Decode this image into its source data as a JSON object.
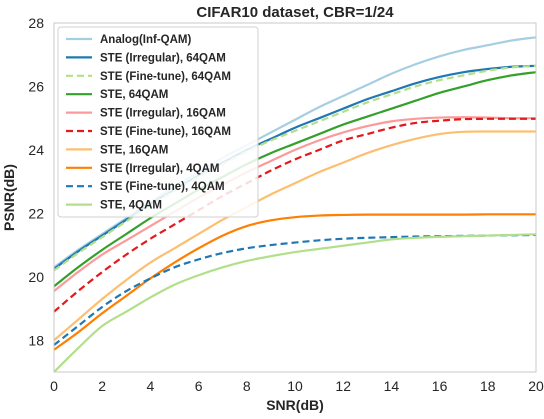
{
  "chart_data": {
    "type": "line",
    "title": "CIFAR10 dataset, CBR=1/24",
    "xlabel": "SNR(dB)",
    "ylabel": "PSNR(dB)",
    "xlim": [
      0,
      20
    ],
    "ylim": [
      17,
      28
    ],
    "xticks": [
      0,
      2,
      4,
      6,
      8,
      10,
      12,
      14,
      16,
      18,
      20
    ],
    "yticks": [
      18,
      20,
      22,
      24,
      26,
      28
    ],
    "grid": false,
    "legend_position": "top-left",
    "x": [
      0,
      1,
      2,
      3,
      4,
      5,
      6,
      7,
      8,
      9,
      10,
      11,
      12,
      13,
      14,
      15,
      16,
      17,
      18,
      19,
      20
    ],
    "series": [
      {
        "name": "Analog(Inf-QAM)",
        "color": "#a6cee3",
        "dash": "solid",
        "values": [
          20.3,
          20.85,
          21.35,
          21.85,
          22.35,
          22.85,
          23.3,
          23.75,
          24.15,
          24.55,
          24.95,
          25.35,
          25.7,
          26.05,
          26.4,
          26.7,
          26.95,
          27.15,
          27.3,
          27.45,
          27.55
        ]
      },
      {
        "name": "STE (Irregular), 64QAM",
        "color": "#1f78b4",
        "dash": "solid",
        "values": [
          20.25,
          20.8,
          21.3,
          21.8,
          22.3,
          22.75,
          23.2,
          23.6,
          24.0,
          24.35,
          24.7,
          25.0,
          25.3,
          25.6,
          25.85,
          26.1,
          26.3,
          26.45,
          26.55,
          26.62,
          26.65
        ]
      },
      {
        "name": "STE (Fine-tune), 64QAM",
        "color": "#b2df8a",
        "dash": "dashed",
        "values": [
          20.2,
          20.75,
          21.25,
          21.75,
          22.25,
          22.7,
          23.15,
          23.55,
          23.95,
          24.3,
          24.6,
          24.9,
          25.2,
          25.5,
          25.75,
          26.0,
          26.2,
          26.35,
          26.5,
          26.6,
          26.65
        ]
      },
      {
        "name": "STE, 64QAM",
        "color": "#33a02c",
        "dash": "solid",
        "values": [
          19.7,
          20.3,
          20.85,
          21.35,
          21.85,
          22.3,
          22.75,
          23.15,
          23.55,
          23.9,
          24.2,
          24.5,
          24.8,
          25.05,
          25.3,
          25.55,
          25.8,
          26.0,
          26.2,
          26.35,
          26.45
        ]
      },
      {
        "name": "STE (Irregular), 16QAM",
        "color": "#fb9a99",
        "dash": "solid",
        "values": [
          19.55,
          20.15,
          20.7,
          21.15,
          21.6,
          22.05,
          22.5,
          22.9,
          23.3,
          23.65,
          24.0,
          24.3,
          24.55,
          24.75,
          24.9,
          24.98,
          25.02,
          25.03,
          25.02,
          25.0,
          25.0
        ]
      },
      {
        "name": "STE (Fine-tune), 16QAM",
        "color": "#e31a1c",
        "dash": "dashed",
        "values": [
          18.9,
          19.55,
          20.15,
          20.7,
          21.2,
          21.65,
          22.1,
          22.55,
          22.95,
          23.35,
          23.7,
          24.0,
          24.3,
          24.5,
          24.7,
          24.85,
          24.92,
          24.97,
          24.98,
          24.98,
          24.98
        ]
      },
      {
        "name": "STE, 16QAM",
        "color": "#fdbf6f",
        "dash": "solid",
        "values": [
          18.0,
          18.65,
          19.3,
          19.9,
          20.45,
          20.9,
          21.35,
          21.8,
          22.2,
          22.6,
          22.95,
          23.3,
          23.6,
          23.9,
          24.15,
          24.35,
          24.5,
          24.57,
          24.58,
          24.58,
          24.58
        ]
      },
      {
        "name": "STE (Irregular), 4QAM",
        "color": "#ff7f00",
        "dash": "solid",
        "values": [
          17.7,
          18.25,
          18.85,
          19.4,
          19.95,
          20.45,
          20.9,
          21.3,
          21.6,
          21.78,
          21.88,
          21.93,
          21.95,
          21.96,
          21.96,
          21.96,
          21.96,
          21.96,
          21.97,
          21.97,
          21.97
        ]
      },
      {
        "name": "STE (Fine-tune), 4QAM",
        "color": "#1f78b4",
        "dash": "dashed",
        "values": [
          17.85,
          18.45,
          19.05,
          19.55,
          19.95,
          20.3,
          20.55,
          20.75,
          20.9,
          21.0,
          21.08,
          21.15,
          21.2,
          21.23,
          21.25,
          21.27,
          21.28,
          21.29,
          21.3,
          21.31,
          21.32
        ]
      },
      {
        "name": "STE, 4QAM",
        "color": "#b2df8a",
        "dash": "solid",
        "values": [
          17.0,
          17.75,
          18.45,
          18.9,
          19.35,
          19.75,
          20.05,
          20.3,
          20.5,
          20.65,
          20.78,
          20.88,
          20.98,
          21.08,
          21.18,
          21.23,
          21.26,
          21.28,
          21.3,
          21.32,
          21.34
        ]
      }
    ]
  }
}
